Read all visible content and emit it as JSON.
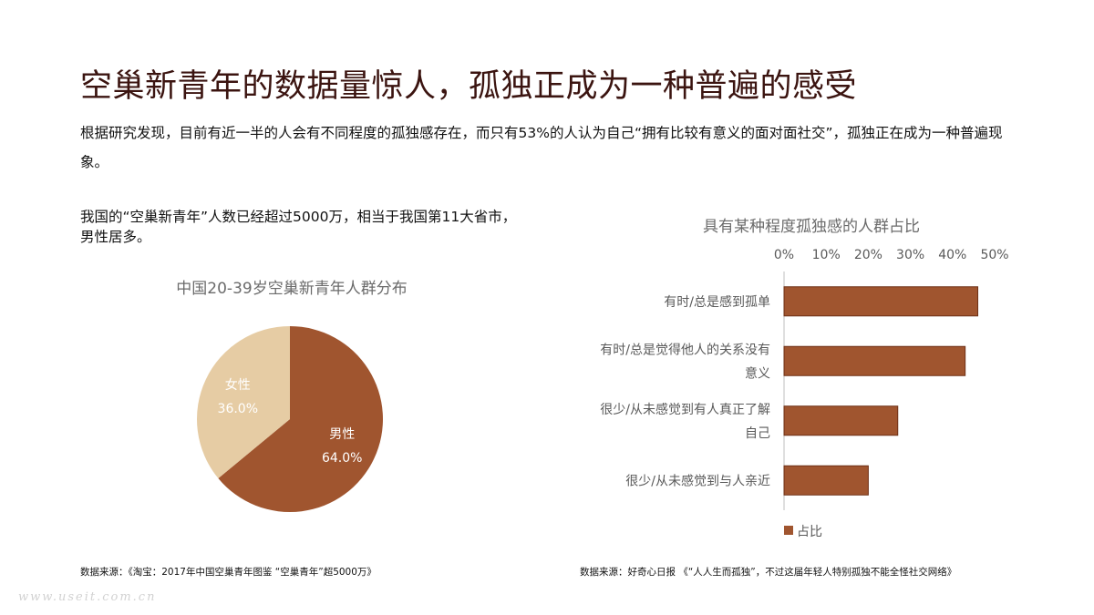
{
  "page": {
    "title": "空巢新青年的数据量惊人，孤独正成为一种普遍的感受",
    "intro": "根据研究发现，目前有近一半的人会有不同程度的孤独感存在，而只有53%的人认为自己“拥有比较有意义的面对面社交”，孤独正在成为一种普遍现象。",
    "subnote": "我国的“空巢新青年”人数已经超过5000万，相当于我国第11大省市，男性居多。",
    "source_left": "数据来源：《淘宝：2017年中国空巢青年图鉴 “空巢青年”超5000万》",
    "source_right": "数据来源：好奇心日报 《“人人生而孤独”，不过这届年轻人特别孤独不能全怪社交网络》",
    "watermark": "www.useit.com.cn"
  },
  "colors": {
    "title": "#3b1410",
    "male": "#a0552f",
    "female": "#e6cca4",
    "bar": "#a0552f",
    "bar_stroke": "#6e3016"
  },
  "chart_data": [
    {
      "type": "pie",
      "title": "中国20-39岁空巢新青年人群分布",
      "slices": [
        {
          "label": "男性",
          "value": 64.0,
          "display": "64.0%"
        },
        {
          "label": "女性",
          "value": 36.0,
          "display": "36.0%"
        }
      ]
    },
    {
      "type": "bar",
      "orientation": "horizontal",
      "title": "具有某种程度孤独感的人群占比",
      "categories": [
        "有时/总是感到孤单",
        "有时/总是觉得他人的关系没有意义",
        "很少/从未感觉到有人真正了解自己",
        "很少/从未感觉到与人亲近"
      ],
      "category_lines": [
        [
          "有时/总是感到孤单"
        ],
        [
          "有时/总是觉得他人的关系没有",
          "意义"
        ],
        [
          "很少/从未感觉到有人真正了解",
          "自己"
        ],
        [
          "很少/从未感觉到与人亲近"
        ]
      ],
      "series": [
        {
          "name": "占比",
          "values": [
            46,
            43,
            27,
            20
          ]
        }
      ],
      "xlim": [
        0,
        50
      ],
      "ticks": [
        0,
        10,
        20,
        30,
        40,
        50
      ],
      "tick_labels": [
        "0%",
        "10%",
        "20%",
        "30%",
        "40%",
        "50%"
      ],
      "axis_position": "top",
      "legend": "bottom"
    }
  ]
}
